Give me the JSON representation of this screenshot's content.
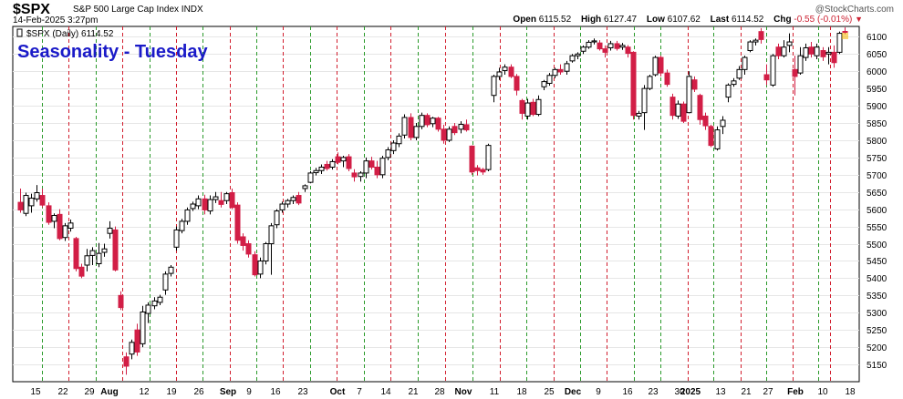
{
  "header": {
    "symbol": "$SPX",
    "name": "S&P 500 Large Cap Index  INDX",
    "date": "14-Feb-2025 3:27pm",
    "brand": "@StockCharts.com",
    "ohlc": {
      "open_label": "Open",
      "open": "6115.52",
      "high_label": "High",
      "high": "6127.47",
      "low_label": "Low",
      "low": "6107.62",
      "last_label": "Last",
      "last": "6114.52",
      "chg_label": "Chg",
      "chg": "-0.55 (-0.01%)"
    }
  },
  "overlay": {
    "title": "Seasonality - Tuesday",
    "series_label": "$SPX (Daily) 6114.52"
  },
  "colors": {
    "up_fill": "#ffffff",
    "down_fill": "#d21e46",
    "line": "#000000",
    "tuesday_line": "#2a9a2a",
    "friday_line": "#d21e2e",
    "grid": "#e6e6e6"
  },
  "chart_data": {
    "type": "candlestick",
    "interval": "daily",
    "ylim": [
      5100,
      6130
    ],
    "yticks": [
      5150,
      5200,
      5250,
      5300,
      5350,
      5400,
      5450,
      5500,
      5550,
      5600,
      5650,
      5700,
      5750,
      5800,
      5850,
      5900,
      5950,
      6000,
      6050,
      6100
    ],
    "x_ticks": [
      {
        "label": "15",
        "bold": false
      },
      {
        "label": "22",
        "bold": false
      },
      {
        "label": "29",
        "bold": false
      },
      {
        "label": "Aug",
        "bold": true
      },
      {
        "label": "12",
        "bold": false
      },
      {
        "label": "19",
        "bold": false
      },
      {
        "label": "26",
        "bold": false
      },
      {
        "label": "Sep",
        "bold": true
      },
      {
        "label": "9",
        "bold": false
      },
      {
        "label": "16",
        "bold": false
      },
      {
        "label": "23",
        "bold": false
      },
      {
        "label": "Oct",
        "bold": true
      },
      {
        "label": "7",
        "bold": false
      },
      {
        "label": "14",
        "bold": false
      },
      {
        "label": "21",
        "bold": false
      },
      {
        "label": "28",
        "bold": false
      },
      {
        "label": "Nov",
        "bold": true
      },
      {
        "label": "11",
        "bold": false
      },
      {
        "label": "18",
        "bold": false
      },
      {
        "label": "25",
        "bold": false
      },
      {
        "label": "Dec",
        "bold": true
      },
      {
        "label": "9",
        "bold": false
      },
      {
        "label": "16",
        "bold": false
      },
      {
        "label": "23",
        "bold": false
      },
      {
        "label": "30",
        "bold": false
      },
      {
        "label": "2025",
        "bold": true
      },
      {
        "label": "13",
        "bold": false
      },
      {
        "label": "21",
        "bold": false
      },
      {
        "label": "27",
        "bold": false
      },
      {
        "label": "Feb",
        "bold": true
      },
      {
        "label": "10",
        "bold": false
      },
      {
        "label": "18",
        "bold": false
      }
    ],
    "candles": [
      {
        "o": 5620,
        "h": 5660,
        "l": 5590,
        "c": 5598
      },
      {
        "o": 5588,
        "h": 5648,
        "l": 5580,
        "c": 5640
      },
      {
        "o": 5610,
        "h": 5645,
        "l": 5590,
        "c": 5632
      },
      {
        "o": 5630,
        "h": 5670,
        "l": 5622,
        "c": 5648
      },
      {
        "o": 5640,
        "h": 5660,
        "l": 5605,
        "c": 5612
      },
      {
        "o": 5610,
        "h": 5620,
        "l": 5555,
        "c": 5562
      },
      {
        "o": 5565,
        "h": 5588,
        "l": 5545,
        "c": 5582
      },
      {
        "o": 5585,
        "h": 5600,
        "l": 5510,
        "c": 5515
      },
      {
        "o": 5518,
        "h": 5560,
        "l": 5508,
        "c": 5552
      },
      {
        "o": 5545,
        "h": 5570,
        "l": 5535,
        "c": 5560
      },
      {
        "o": 5515,
        "h": 5520,
        "l": 5420,
        "c": 5428
      },
      {
        "o": 5432,
        "h": 5442,
        "l": 5400,
        "c": 5406
      },
      {
        "o": 5438,
        "h": 5485,
        "l": 5420,
        "c": 5465
      },
      {
        "o": 5466,
        "h": 5490,
        "l": 5438,
        "c": 5480
      },
      {
        "o": 5442,
        "h": 5502,
        "l": 5432,
        "c": 5472
      },
      {
        "o": 5475,
        "h": 5500,
        "l": 5462,
        "c": 5485
      },
      {
        "o": 5530,
        "h": 5565,
        "l": 5515,
        "c": 5545
      },
      {
        "o": 5540,
        "h": 5550,
        "l": 5420,
        "c": 5424
      },
      {
        "o": 5350,
        "h": 5362,
        "l": 5308,
        "c": 5315
      },
      {
        "o": 5172,
        "h": 5185,
        "l": 5120,
        "c": 5145
      },
      {
        "o": 5180,
        "h": 5222,
        "l": 5165,
        "c": 5214
      },
      {
        "o": 5250,
        "h": 5268,
        "l": 5175,
        "c": 5186
      },
      {
        "o": 5210,
        "h": 5320,
        "l": 5200,
        "c": 5302
      },
      {
        "o": 5298,
        "h": 5330,
        "l": 5270,
        "c": 5322
      },
      {
        "o": 5320,
        "h": 5345,
        "l": 5310,
        "c": 5334
      },
      {
        "o": 5330,
        "h": 5352,
        "l": 5322,
        "c": 5345
      },
      {
        "o": 5366,
        "h": 5420,
        "l": 5352,
        "c": 5412
      },
      {
        "o": 5414,
        "h": 5438,
        "l": 5405,
        "c": 5432
      },
      {
        "o": 5490,
        "h": 5550,
        "l": 5480,
        "c": 5540
      },
      {
        "o": 5538,
        "h": 5572,
        "l": 5530,
        "c": 5565
      },
      {
        "o": 5565,
        "h": 5605,
        "l": 5555,
        "c": 5598
      },
      {
        "o": 5602,
        "h": 5622,
        "l": 5595,
        "c": 5615
      },
      {
        "o": 5610,
        "h": 5640,
        "l": 5600,
        "c": 5630
      },
      {
        "o": 5630,
        "h": 5642,
        "l": 5585,
        "c": 5598
      },
      {
        "o": 5595,
        "h": 5640,
        "l": 5585,
        "c": 5628
      },
      {
        "o": 5628,
        "h": 5650,
        "l": 5618,
        "c": 5636
      },
      {
        "o": 5625,
        "h": 5650,
        "l": 5605,
        "c": 5614
      },
      {
        "o": 5625,
        "h": 5650,
        "l": 5615,
        "c": 5645
      },
      {
        "o": 5648,
        "h": 5660,
        "l": 5600,
        "c": 5605
      },
      {
        "o": 5612,
        "h": 5620,
        "l": 5500,
        "c": 5510
      },
      {
        "o": 5520,
        "h": 5530,
        "l": 5480,
        "c": 5495
      },
      {
        "o": 5500,
        "h": 5510,
        "l": 5460,
        "c": 5470
      },
      {
        "o": 5468,
        "h": 5478,
        "l": 5405,
        "c": 5410
      },
      {
        "o": 5412,
        "h": 5460,
        "l": 5400,
        "c": 5450
      },
      {
        "o": 5450,
        "h": 5505,
        "l": 5440,
        "c": 5500
      },
      {
        "o": 5500,
        "h": 5560,
        "l": 5410,
        "c": 5552
      },
      {
        "o": 5555,
        "h": 5600,
        "l": 5545,
        "c": 5595
      },
      {
        "o": 5598,
        "h": 5622,
        "l": 5590,
        "c": 5615
      },
      {
        "o": 5615,
        "h": 5630,
        "l": 5605,
        "c": 5625
      },
      {
        "o": 5625,
        "h": 5640,
        "l": 5615,
        "c": 5634
      },
      {
        "o": 5640,
        "h": 5650,
        "l": 5612,
        "c": 5618
      },
      {
        "o": 5660,
        "h": 5672,
        "l": 5650,
        "c": 5668
      },
      {
        "o": 5678,
        "h": 5710,
        "l": 5675,
        "c": 5705
      },
      {
        "o": 5706,
        "h": 5720,
        "l": 5698,
        "c": 5712
      },
      {
        "o": 5712,
        "h": 5730,
        "l": 5702,
        "c": 5722
      },
      {
        "o": 5730,
        "h": 5740,
        "l": 5712,
        "c": 5718
      },
      {
        "o": 5722,
        "h": 5745,
        "l": 5715,
        "c": 5738
      },
      {
        "o": 5752,
        "h": 5765,
        "l": 5730,
        "c": 5736
      },
      {
        "o": 5740,
        "h": 5755,
        "l": 5722,
        "c": 5750
      },
      {
        "o": 5752,
        "h": 5760,
        "l": 5710,
        "c": 5718
      },
      {
        "o": 5705,
        "h": 5716,
        "l": 5680,
        "c": 5694
      },
      {
        "o": 5695,
        "h": 5710,
        "l": 5680,
        "c": 5705
      },
      {
        "o": 5705,
        "h": 5750,
        "l": 5690,
        "c": 5740
      },
      {
        "o": 5740,
        "h": 5752,
        "l": 5715,
        "c": 5722
      },
      {
        "o": 5722,
        "h": 5740,
        "l": 5690,
        "c": 5700
      },
      {
        "o": 5700,
        "h": 5755,
        "l": 5690,
        "c": 5748
      },
      {
        "o": 5750,
        "h": 5780,
        "l": 5742,
        "c": 5772
      },
      {
        "o": 5770,
        "h": 5800,
        "l": 5760,
        "c": 5792
      },
      {
        "o": 5790,
        "h": 5820,
        "l": 5780,
        "c": 5812
      },
      {
        "o": 5815,
        "h": 5875,
        "l": 5805,
        "c": 5866
      },
      {
        "o": 5866,
        "h": 5878,
        "l": 5800,
        "c": 5808
      },
      {
        "o": 5808,
        "h": 5850,
        "l": 5800,
        "c": 5840
      },
      {
        "o": 5840,
        "h": 5880,
        "l": 5832,
        "c": 5872
      },
      {
        "o": 5872,
        "h": 5878,
        "l": 5838,
        "c": 5845
      },
      {
        "o": 5848,
        "h": 5868,
        "l": 5838,
        "c": 5864
      },
      {
        "o": 5864,
        "h": 5868,
        "l": 5825,
        "c": 5832
      },
      {
        "o": 5832,
        "h": 5845,
        "l": 5790,
        "c": 5800
      },
      {
        "o": 5800,
        "h": 5840,
        "l": 5795,
        "c": 5832
      },
      {
        "o": 5840,
        "h": 5850,
        "l": 5815,
        "c": 5822
      },
      {
        "o": 5832,
        "h": 5855,
        "l": 5820,
        "c": 5846
      },
      {
        "o": 5845,
        "h": 5860,
        "l": 5825,
        "c": 5830
      },
      {
        "o": 5783,
        "h": 5785,
        "l": 5700,
        "c": 5708
      },
      {
        "o": 5720,
        "h": 5728,
        "l": 5698,
        "c": 5712
      },
      {
        "o": 5715,
        "h": 5720,
        "l": 5700,
        "c": 5708
      },
      {
        "o": 5715,
        "h": 5790,
        "l": 5710,
        "c": 5785
      },
      {
        "o": 5930,
        "h": 5990,
        "l": 5910,
        "c": 5985
      },
      {
        "o": 5985,
        "h": 6010,
        "l": 5975,
        "c": 5998
      },
      {
        "o": 6002,
        "h": 6020,
        "l": 5990,
        "c": 6012
      },
      {
        "o": 6012,
        "h": 6020,
        "l": 5980,
        "c": 5985
      },
      {
        "o": 5985,
        "h": 5992,
        "l": 5930,
        "c": 5945
      },
      {
        "o": 5915,
        "h": 5920,
        "l": 5860,
        "c": 5878
      },
      {
        "o": 5870,
        "h": 5920,
        "l": 5860,
        "c": 5908
      },
      {
        "o": 5910,
        "h": 5920,
        "l": 5870,
        "c": 5875
      },
      {
        "o": 5875,
        "h": 5930,
        "l": 5870,
        "c": 5918
      },
      {
        "o": 5955,
        "h": 5975,
        "l": 5945,
        "c": 5970
      },
      {
        "o": 5965,
        "h": 5995,
        "l": 5958,
        "c": 5988
      },
      {
        "o": 5988,
        "h": 6010,
        "l": 5980,
        "c": 6005
      },
      {
        "o": 6005,
        "h": 6020,
        "l": 5990,
        "c": 5998
      },
      {
        "o": 6000,
        "h": 6030,
        "l": 5990,
        "c": 6022
      },
      {
        "o": 6030,
        "h": 6050,
        "l": 6025,
        "c": 6045
      },
      {
        "o": 6045,
        "h": 6055,
        "l": 6035,
        "c": 6050
      },
      {
        "o": 6058,
        "h": 6075,
        "l": 6050,
        "c": 6070
      },
      {
        "o": 6070,
        "h": 6090,
        "l": 6065,
        "c": 6084
      },
      {
        "o": 6085,
        "h": 6095,
        "l": 6078,
        "c": 6088
      },
      {
        "o": 6082,
        "h": 6090,
        "l": 6060,
        "c": 6065
      },
      {
        "o": 6065,
        "h": 6075,
        "l": 6040,
        "c": 6055
      },
      {
        "o": 6068,
        "h": 6088,
        "l": 6060,
        "c": 6080
      },
      {
        "o": 6080,
        "h": 6088,
        "l": 6060,
        "c": 6066
      },
      {
        "o": 6070,
        "h": 6082,
        "l": 6062,
        "c": 6075
      },
      {
        "o": 6070,
        "h": 6076,
        "l": 6040,
        "c": 6052
      },
      {
        "o": 6055,
        "h": 6058,
        "l": 5860,
        "c": 5872
      },
      {
        "o": 5870,
        "h": 5885,
        "l": 5860,
        "c": 5878
      },
      {
        "o": 5880,
        "h": 5960,
        "l": 5830,
        "c": 5950
      },
      {
        "o": 5950,
        "h": 5990,
        "l": 5945,
        "c": 5985
      },
      {
        "o": 5990,
        "h": 6045,
        "l": 5985,
        "c": 6040
      },
      {
        "o": 6040,
        "h": 6045,
        "l": 5985,
        "c": 5995
      },
      {
        "o": 5995,
        "h": 6005,
        "l": 5955,
        "c": 5962
      },
      {
        "o": 5925,
        "h": 5935,
        "l": 5860,
        "c": 5872
      },
      {
        "o": 5870,
        "h": 5915,
        "l": 5862,
        "c": 5905
      },
      {
        "o": 5905,
        "h": 5912,
        "l": 5850,
        "c": 5855
      },
      {
        "o": 5880,
        "h": 6000,
        "l": 5878,
        "c": 5985
      },
      {
        "o": 5975,
        "h": 5985,
        "l": 5940,
        "c": 5948
      },
      {
        "o": 5930,
        "h": 5935,
        "l": 5845,
        "c": 5860
      },
      {
        "o": 5870,
        "h": 5880,
        "l": 5830,
        "c": 5842
      },
      {
        "o": 5840,
        "h": 5845,
        "l": 5780,
        "c": 5785
      },
      {
        "o": 5775,
        "h": 5840,
        "l": 5770,
        "c": 5830
      },
      {
        "o": 5840,
        "h": 5870,
        "l": 5818,
        "c": 5858
      },
      {
        "o": 5925,
        "h": 5965,
        "l": 5910,
        "c": 5960
      },
      {
        "o": 5962,
        "h": 5980,
        "l": 5955,
        "c": 5972
      },
      {
        "o": 5980,
        "h": 6015,
        "l": 5975,
        "c": 6005
      },
      {
        "o": 6005,
        "h": 6045,
        "l": 5990,
        "c": 6040
      },
      {
        "o": 6060,
        "h": 6090,
        "l": 6055,
        "c": 6085
      },
      {
        "o": 6085,
        "h": 6095,
        "l": 6075,
        "c": 6090
      },
      {
        "o": 6115,
        "h": 6125,
        "l": 6080,
        "c": 6092
      },
      {
        "o": 5990,
        "h": 6020,
        "l": 5960,
        "c": 5975
      },
      {
        "o": 5960,
        "h": 6050,
        "l": 5955,
        "c": 6045
      },
      {
        "o": 6070,
        "h": 6080,
        "l": 6035,
        "c": 6045
      },
      {
        "o": 6045,
        "h": 6090,
        "l": 6040,
        "c": 6070
      },
      {
        "o": 6075,
        "h": 6110,
        "l": 6055,
        "c": 6085
      },
      {
        "o": 6005,
        "h": 6045,
        "l": 5930,
        "c": 5985
      },
      {
        "o": 5995,
        "h": 6070,
        "l": 5990,
        "c": 6045
      },
      {
        "o": 6040,
        "h": 6080,
        "l": 6030,
        "c": 6068
      },
      {
        "o": 6070,
        "h": 6085,
        "l": 6040,
        "c": 6050
      },
      {
        "o": 6045,
        "h": 6080,
        "l": 6035,
        "c": 6070
      },
      {
        "o": 6060,
        "h": 6070,
        "l": 6030,
        "c": 6042
      },
      {
        "o": 6050,
        "h": 6070,
        "l": 6020,
        "c": 6055
      },
      {
        "o": 6055,
        "h": 6075,
        "l": 6010,
        "c": 6025
      },
      {
        "o": 6055,
        "h": 6115,
        "l": 6050,
        "c": 6110
      },
      {
        "o": 6115.52,
        "h": 6127.47,
        "l": 6107.62,
        "c": 6114.52
      }
    ]
  }
}
